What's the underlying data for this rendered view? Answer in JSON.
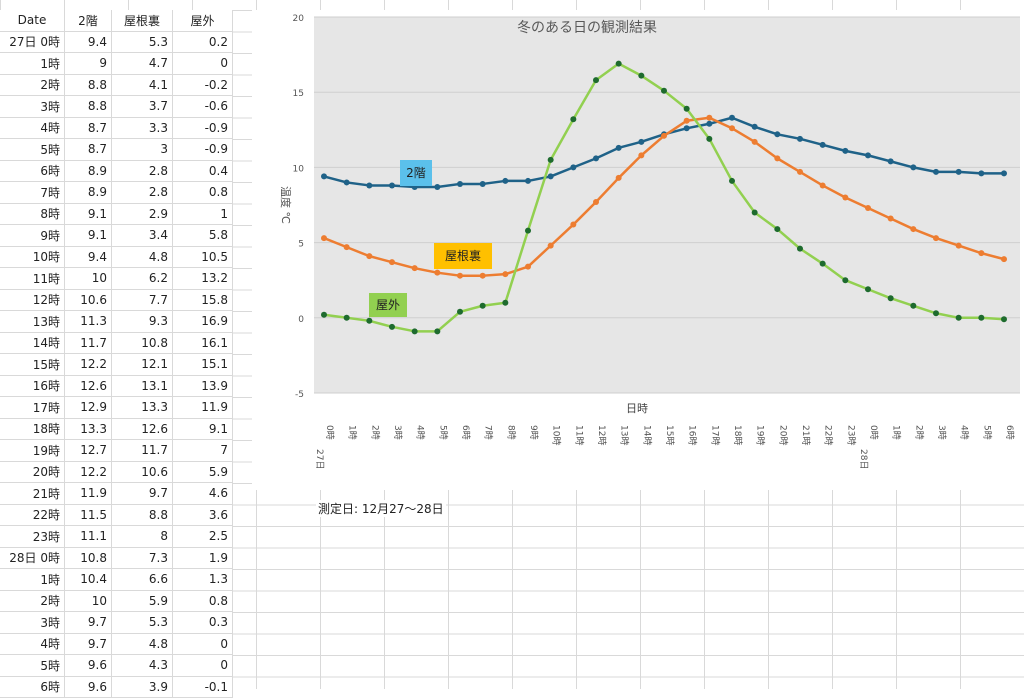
{
  "table": {
    "headers": [
      "Date",
      "2階",
      "屋根裏",
      "屋外"
    ],
    "rows": [
      [
        "27日 0時",
        "9.4",
        "5.3",
        "0.2"
      ],
      [
        "1時",
        "9",
        "4.7",
        "0"
      ],
      [
        "2時",
        "8.8",
        "4.1",
        "-0.2"
      ],
      [
        "3時",
        "8.8",
        "3.7",
        "-0.6"
      ],
      [
        "4時",
        "8.7",
        "3.3",
        "-0.9"
      ],
      [
        "5時",
        "8.7",
        "3",
        "-0.9"
      ],
      [
        "6時",
        "8.9",
        "2.8",
        "0.4"
      ],
      [
        "7時",
        "8.9",
        "2.8",
        "0.8"
      ],
      [
        "8時",
        "9.1",
        "2.9",
        "1"
      ],
      [
        "9時",
        "9.1",
        "3.4",
        "5.8"
      ],
      [
        "10時",
        "9.4",
        "4.8",
        "10.5"
      ],
      [
        "11時",
        "10",
        "6.2",
        "13.2"
      ],
      [
        "12時",
        "10.6",
        "7.7",
        "15.8"
      ],
      [
        "13時",
        "11.3",
        "9.3",
        "16.9"
      ],
      [
        "14時",
        "11.7",
        "10.8",
        "16.1"
      ],
      [
        "15時",
        "12.2",
        "12.1",
        "15.1"
      ],
      [
        "16時",
        "12.6",
        "13.1",
        "13.9"
      ],
      [
        "17時",
        "12.9",
        "13.3",
        "11.9"
      ],
      [
        "18時",
        "13.3",
        "12.6",
        "9.1"
      ],
      [
        "19時",
        "12.7",
        "11.7",
        "7"
      ],
      [
        "20時",
        "12.2",
        "10.6",
        "5.9"
      ],
      [
        "21時",
        "11.9",
        "9.7",
        "4.6"
      ],
      [
        "22時",
        "11.5",
        "8.8",
        "3.6"
      ],
      [
        "23時",
        "11.1",
        "8",
        "2.5"
      ],
      [
        "28日 0時",
        "10.8",
        "7.3",
        "1.9"
      ],
      [
        "1時",
        "10.4",
        "6.6",
        "1.3"
      ],
      [
        "2時",
        "10",
        "5.9",
        "0.8"
      ],
      [
        "3時",
        "9.7",
        "5.3",
        "0.3"
      ],
      [
        "4時",
        "9.7",
        "4.8",
        "0"
      ],
      [
        "5時",
        "9.6",
        "4.3",
        "0"
      ],
      [
        "6時",
        "9.6",
        "3.9",
        "-0.1"
      ]
    ]
  },
  "chart_data": {
    "type": "line",
    "title": "冬のある日の観測結果",
    "xlabel": "日時",
    "ylabel": "温度 ℃",
    "ylim": [
      -5,
      20
    ],
    "yticks": [
      "20",
      "15",
      "10",
      "5",
      "0",
      "-5"
    ],
    "categories": [
      "0時",
      "1時",
      "2時",
      "3時",
      "4時",
      "5時",
      "6時",
      "7時",
      "8時",
      "9時",
      "10時",
      "11時",
      "12時",
      "13時",
      "14時",
      "15時",
      "16時",
      "17時",
      "18時",
      "19時",
      "20時",
      "21時",
      "22時",
      "23時",
      "0時",
      "1時",
      "2時",
      "3時",
      "4時",
      "5時",
      "6時"
    ],
    "day_labels": [
      "27日",
      "28日"
    ],
    "series": [
      {
        "name": "2階",
        "color": "#1f6288",
        "label_bg": "#5bc0eb",
        "values": [
          9.4,
          9,
          8.8,
          8.8,
          8.7,
          8.7,
          8.9,
          8.9,
          9.1,
          9.1,
          9.4,
          10,
          10.6,
          11.3,
          11.7,
          12.2,
          12.6,
          12.9,
          13.3,
          12.7,
          12.2,
          11.9,
          11.5,
          11.1,
          10.8,
          10.4,
          10,
          9.7,
          9.7,
          9.6,
          9.6
        ]
      },
      {
        "name": "屋根裏",
        "color": "#ed7d31",
        "label_bg": "#ffc000",
        "values": [
          5.3,
          4.7,
          4.1,
          3.7,
          3.3,
          3,
          2.8,
          2.8,
          2.9,
          3.4,
          4.8,
          6.2,
          7.7,
          9.3,
          10.8,
          12.1,
          13.1,
          13.3,
          12.6,
          11.7,
          10.6,
          9.7,
          8.8,
          8,
          7.3,
          6.6,
          5.9,
          5.3,
          4.8,
          4.3,
          3.9
        ]
      },
      {
        "name": "屋外",
        "color": "#92d050",
        "marker": "#1e6b2e",
        "label_bg": "#92d050",
        "values": [
          0.2,
          0,
          -0.2,
          -0.6,
          -0.9,
          -0.9,
          0.4,
          0.8,
          1,
          5.8,
          10.5,
          13.2,
          15.8,
          16.9,
          16.1,
          15.1,
          13.9,
          11.9,
          9.1,
          7,
          5.9,
          4.6,
          3.6,
          2.5,
          1.9,
          1.3,
          0.8,
          0.3,
          0,
          0,
          -0.1
        ]
      }
    ]
  },
  "memo": "測定日: 12月27〜28日"
}
